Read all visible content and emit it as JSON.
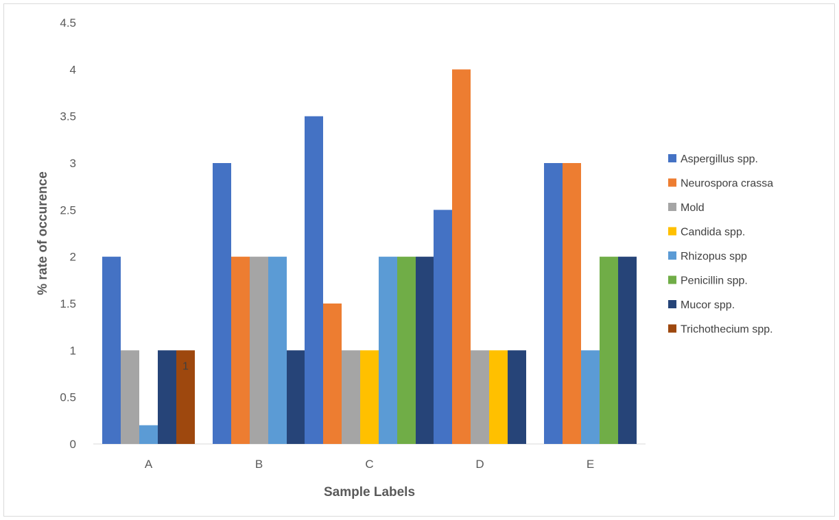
{
  "chart_data": {
    "type": "bar",
    "title": "",
    "xlabel": "Sample Labels",
    "ylabel": "% rate of occurence",
    "ylim": [
      0,
      4.5
    ],
    "yticks": [
      "0",
      "0.5",
      "1",
      "1.5",
      "2",
      "2.5",
      "3",
      "3.5",
      "4",
      "4.5"
    ],
    "grid": false,
    "legend_position": "right",
    "categories": [
      "A",
      "B",
      "C",
      "D",
      "E"
    ],
    "series": [
      {
        "name": "Aspergillus spp.",
        "color": "#4472C4",
        "values": [
          2,
          3,
          3.5,
          2.5,
          3
        ]
      },
      {
        "name": "Neurospora crassa",
        "color": "#ED7D31",
        "values": [
          0,
          2,
          1.5,
          4,
          3
        ]
      },
      {
        "name": "Mold",
        "color": "#A5A5A5",
        "values": [
          1,
          2,
          1,
          1,
          0
        ]
      },
      {
        "name": "Candida spp.",
        "color": "#FFC000",
        "values": [
          0,
          0,
          1,
          1,
          0
        ]
      },
      {
        "name": "Rhizopus spp",
        "color": "#5B9BD5",
        "values": [
          0.2,
          2,
          2,
          0,
          1
        ]
      },
      {
        "name": "Penicillin spp.",
        "color": "#70AD47",
        "values": [
          0,
          0,
          2,
          0,
          2
        ]
      },
      {
        "name": "Mucor spp.",
        "color": "#264478",
        "values": [
          1,
          1,
          2,
          1,
          2
        ]
      },
      {
        "name": "Trichothecium spp.",
        "color": "#9E480E",
        "values": [
          1,
          0,
          0,
          0,
          0
        ]
      }
    ],
    "annotations": [
      {
        "series": "Trichothecium spp.",
        "category": "A",
        "text": "1"
      }
    ]
  }
}
